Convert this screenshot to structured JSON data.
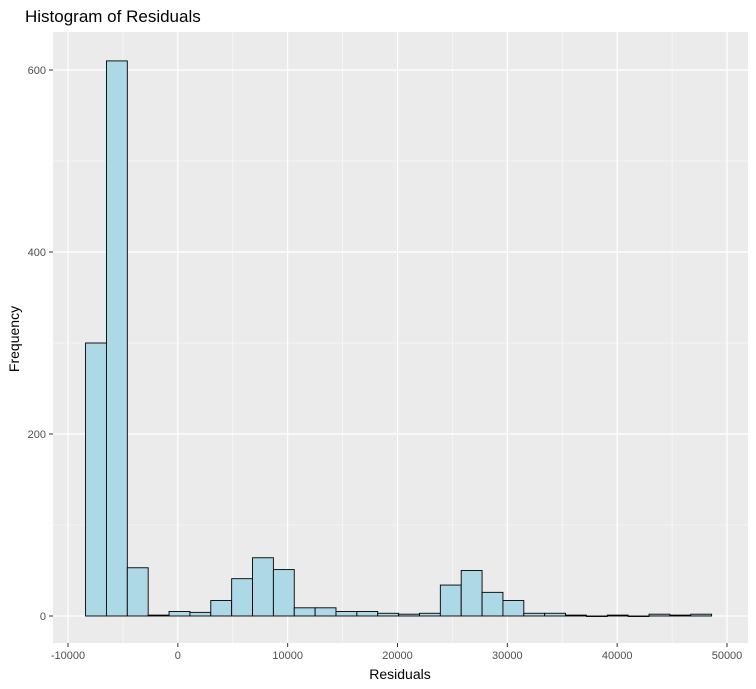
{
  "chart_data": {
    "type": "bar",
    "title": "Histogram of Residuals",
    "xlabel": "Residuals",
    "ylabel": "Frequency",
    "xlim": [
      -10000,
      50000
    ],
    "ylim": [
      0,
      600
    ],
    "x_ticks": [
      -10000,
      0,
      10000,
      20000,
      30000,
      40000,
      50000
    ],
    "y_ticks": [
      0,
      200,
      400,
      600
    ],
    "grid": true,
    "bin_width": 1900,
    "bin_starts": [
      -8400,
      -6500,
      -4600,
      -2700,
      -800,
      1100,
      3000,
      4900,
      6800,
      8700,
      10600,
      12500,
      14400,
      16300,
      18200,
      20100,
      22000,
      23900,
      25800,
      27700,
      29600,
      31500,
      33400,
      35300,
      37200,
      39100,
      41000,
      42900,
      44800,
      46700
    ],
    "values": [
      300,
      610,
      53,
      1,
      5,
      4,
      17,
      41,
      64,
      51,
      9,
      9,
      5,
      5,
      3,
      2,
      3,
      34,
      50,
      26,
      17,
      3,
      3,
      1,
      0,
      1,
      0,
      2,
      1,
      2
    ],
    "colors": {
      "fill": "#add8e6",
      "stroke": "#000000",
      "panel": "#ebebeb",
      "grid": "#ffffff"
    }
  }
}
